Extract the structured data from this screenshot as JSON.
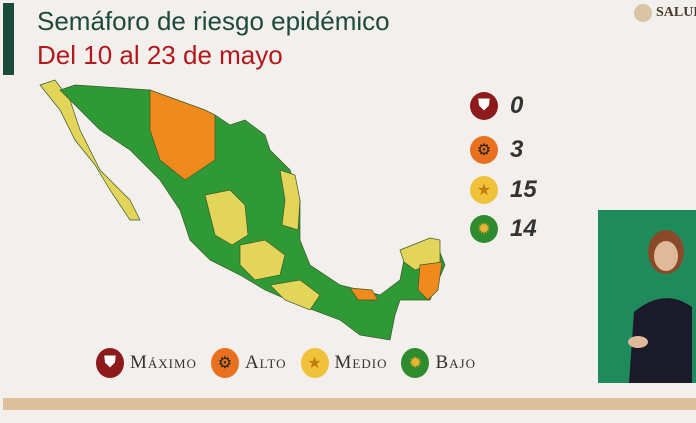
{
  "header": {
    "title": "Semáforo de riesgo epidémico",
    "subtitle": "Del 10 al 23 de mayo",
    "logo_text": "SALUD"
  },
  "counts": [
    {
      "level": "Máximo",
      "icon": "shield-icon",
      "color": "#8e1b1b",
      "value": "0"
    },
    {
      "level": "Alto",
      "icon": "gear-icon",
      "color": "#e8701e",
      "value": "3"
    },
    {
      "level": "Medio",
      "icon": "star-icon",
      "color": "#f0c23a",
      "value": "15"
    },
    {
      "level": "Bajo",
      "icon": "sun-icon",
      "color": "#2e8b2e",
      "value": "14"
    }
  ],
  "legend": [
    {
      "label": "Máximo",
      "icon": "shield-icon",
      "color": "#8e1b1b"
    },
    {
      "label": "Alto",
      "icon": "gear-icon",
      "color": "#e8701e"
    },
    {
      "label": "Medio",
      "icon": "star-icon",
      "color": "#f0c23a"
    },
    {
      "label": "Bajo",
      "icon": "sun-icon",
      "color": "#2e8b2e"
    }
  ],
  "map_colors": {
    "bajo": "#2f9a35",
    "medio": "#e3d45a",
    "alto": "#f08a1c"
  }
}
